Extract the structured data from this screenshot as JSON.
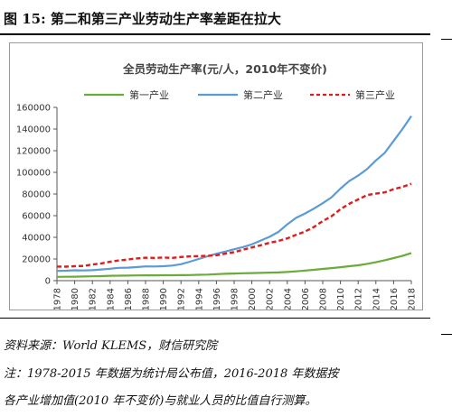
{
  "figure": {
    "label": "图 15:",
    "title": "第二和第三产业劳动生产率差距在拉大"
  },
  "footer": {
    "source": "资料来源：World KLEMS，财信研究院",
    "note_line1": "注：1978-2015 年数据为统计局公布值，2016-2018 年数据按",
    "note_line2": "各产业增加值(2010 年不变价)与就业人员的比值自行测算。"
  },
  "chart_data": {
    "type": "line",
    "title": "全员劳动生产率(元/人，2010年不变价)",
    "xlabel": "",
    "ylabel": "",
    "ylim": [
      0,
      160000
    ],
    "yticks": [
      0,
      20000,
      40000,
      60000,
      80000,
      100000,
      120000,
      140000,
      160000
    ],
    "xticks": [
      1978,
      1980,
      1982,
      1984,
      1986,
      1988,
      1990,
      1992,
      1994,
      1996,
      1998,
      2000,
      2002,
      2004,
      2006,
      2008,
      2010,
      2012,
      2014,
      2016,
      2018
    ],
    "x": [
      1978,
      1979,
      1980,
      1981,
      1982,
      1983,
      1984,
      1985,
      1986,
      1987,
      1988,
      1989,
      1990,
      1991,
      1992,
      1993,
      1994,
      1995,
      1996,
      1997,
      1998,
      1999,
      2000,
      2001,
      2002,
      2003,
      2004,
      2005,
      2006,
      2007,
      2008,
      2009,
      2010,
      2011,
      2012,
      2013,
      2014,
      2015,
      2016,
      2017,
      2018
    ],
    "grid": false,
    "legend": "top",
    "series": [
      {
        "name": "第一产业",
        "color": "#6aab3a",
        "style": "solid",
        "values": [
          3500,
          3600,
          3700,
          3800,
          4000,
          4200,
          4500,
          4600,
          4700,
          4800,
          4900,
          4900,
          5000,
          5000,
          5100,
          5200,
          5400,
          5600,
          6000,
          6300,
          6600,
          6800,
          7000,
          7200,
          7400,
          7600,
          8000,
          8600,
          9300,
          10000,
          10800,
          11600,
          12400,
          13300,
          14200,
          15500,
          17000,
          18800,
          20800,
          22800,
          25500
        ]
      },
      {
        "name": "第二产业",
        "color": "#5b9bd5",
        "style": "solid",
        "values": [
          9000,
          9200,
          9600,
          9400,
          9700,
          10300,
          11000,
          11800,
          12000,
          12500,
          13200,
          13100,
          13300,
          13900,
          15200,
          17500,
          20000,
          22500,
          24800,
          26800,
          29000,
          31000,
          33500,
          37000,
          40500,
          45000,
          52000,
          58000,
          62000,
          66500,
          71500,
          77000,
          85000,
          92000,
          97000,
          103000,
          111000,
          118000,
          129000,
          140000,
          152000
        ]
      },
      {
        "name": "第三产业",
        "color": "#e01b1b",
        "style": "dashed",
        "values": [
          13000,
          12900,
          13300,
          13600,
          14900,
          15900,
          17400,
          18700,
          19500,
          20500,
          21200,
          21000,
          21300,
          21000,
          21800,
          22400,
          22700,
          22900,
          23400,
          24900,
          26300,
          28600,
          30700,
          32700,
          35000,
          36700,
          39000,
          42300,
          45300,
          49500,
          55000,
          59500,
          66000,
          71000,
          75000,
          79000,
          80300,
          81500,
          84500,
          86500,
          89500
        ]
      }
    ]
  }
}
